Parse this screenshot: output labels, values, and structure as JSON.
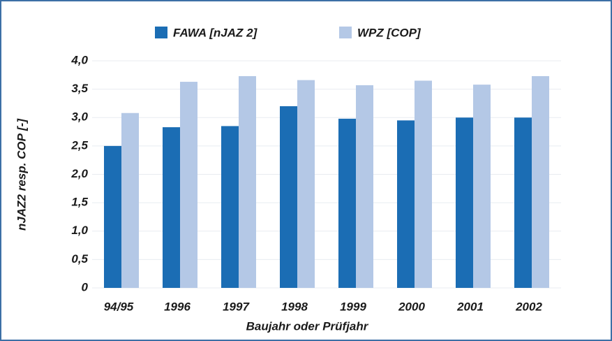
{
  "chart_data": {
    "type": "bar",
    "categories": [
      "94/95",
      "1996",
      "1997",
      "1998",
      "1999",
      "2000",
      "2001",
      "2002"
    ],
    "series": [
      {
        "name": "FAWA [nJAZ 2]",
        "color": "#1b6db4",
        "values": [
          2.5,
          2.83,
          2.85,
          3.2,
          2.98,
          2.95,
          3.0,
          3.0
        ]
      },
      {
        "name": "WPZ [COP]",
        "color": "#b4c8e6",
        "values": [
          3.08,
          3.63,
          3.73,
          3.66,
          3.57,
          3.65,
          3.58,
          3.73
        ]
      }
    ],
    "ylabel": "nJAZ2  resp. COP [-]",
    "xlabel": "Baujahr oder Prüfjahr",
    "ylim": [
      0,
      4
    ],
    "yticks": [
      0,
      {
        "value": 0.5,
        "label": "0,5"
      },
      {
        "value": 1,
        "label": "1,0"
      },
      {
        "value": 1.5,
        "label": "1,5"
      },
      {
        "value": 2,
        "label": "2,0"
      },
      {
        "value": 2.5,
        "label": "2,5"
      },
      {
        "value": 3,
        "label": "3,0"
      },
      {
        "value": 3.5,
        "label": "3,5"
      },
      {
        "value": 4,
        "label": "4,0"
      }
    ],
    "grid": true,
    "legend": "top"
  }
}
